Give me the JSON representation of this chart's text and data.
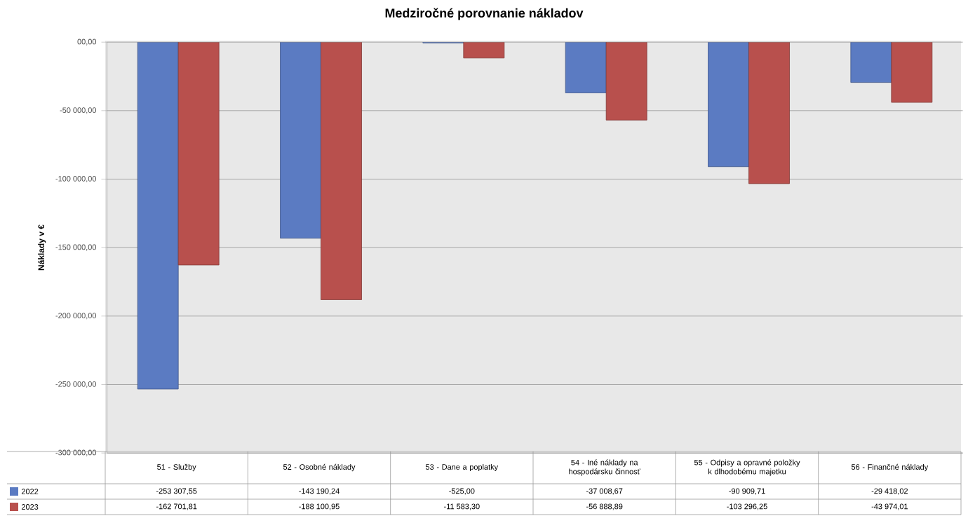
{
  "chart_data": {
    "type": "bar",
    "title": "Medziročné porovnanie nákladov",
    "ylabel": "Náklady v €",
    "categories": [
      "51 - Služby",
      "52 - Osobné náklady",
      "53 - Dane a poplatky",
      "54 - Iné náklady na hospodársku činnosť",
      "55 - Odpisy a opravné položky k dlhodobému majetku",
      "56 - Finančné náklady"
    ],
    "series": [
      {
        "name": "2022",
        "color": "#5b7bc2",
        "values": [
          -253307.55,
          -143190.24,
          -525.0,
          -37008.67,
          -90909.71,
          -29418.02
        ],
        "value_labels": [
          "-253 307,55",
          "-143 190,24",
          "-525,00",
          "-37 008,67",
          "-90 909,71",
          "-29 418,02"
        ]
      },
      {
        "name": "2023",
        "color": "#b8504d",
        "values": [
          -162701.81,
          -188100.95,
          -11583.3,
          -56888.89,
          -103296.25,
          -43974.01
        ],
        "value_labels": [
          "-162 701,81",
          "-188 100,95",
          "-11 583,30",
          "-56 888,89",
          "-103 296,25",
          "-43 974,01"
        ]
      }
    ],
    "ylim": [
      -300000,
      0
    ],
    "yticks": [
      {
        "value": 0,
        "label": "00,00"
      },
      {
        "value": -50000,
        "label": "-50 000,00"
      },
      {
        "value": -100000,
        "label": "-100 000,00"
      },
      {
        "value": -150000,
        "label": "-150 000,00"
      },
      {
        "value": -200000,
        "label": "-200 000,00"
      },
      {
        "value": -250000,
        "label": "-250 000,00"
      },
      {
        "value": -300000,
        "label": "-300 000,00"
      }
    ],
    "grid": "y",
    "legend": "bottom"
  }
}
